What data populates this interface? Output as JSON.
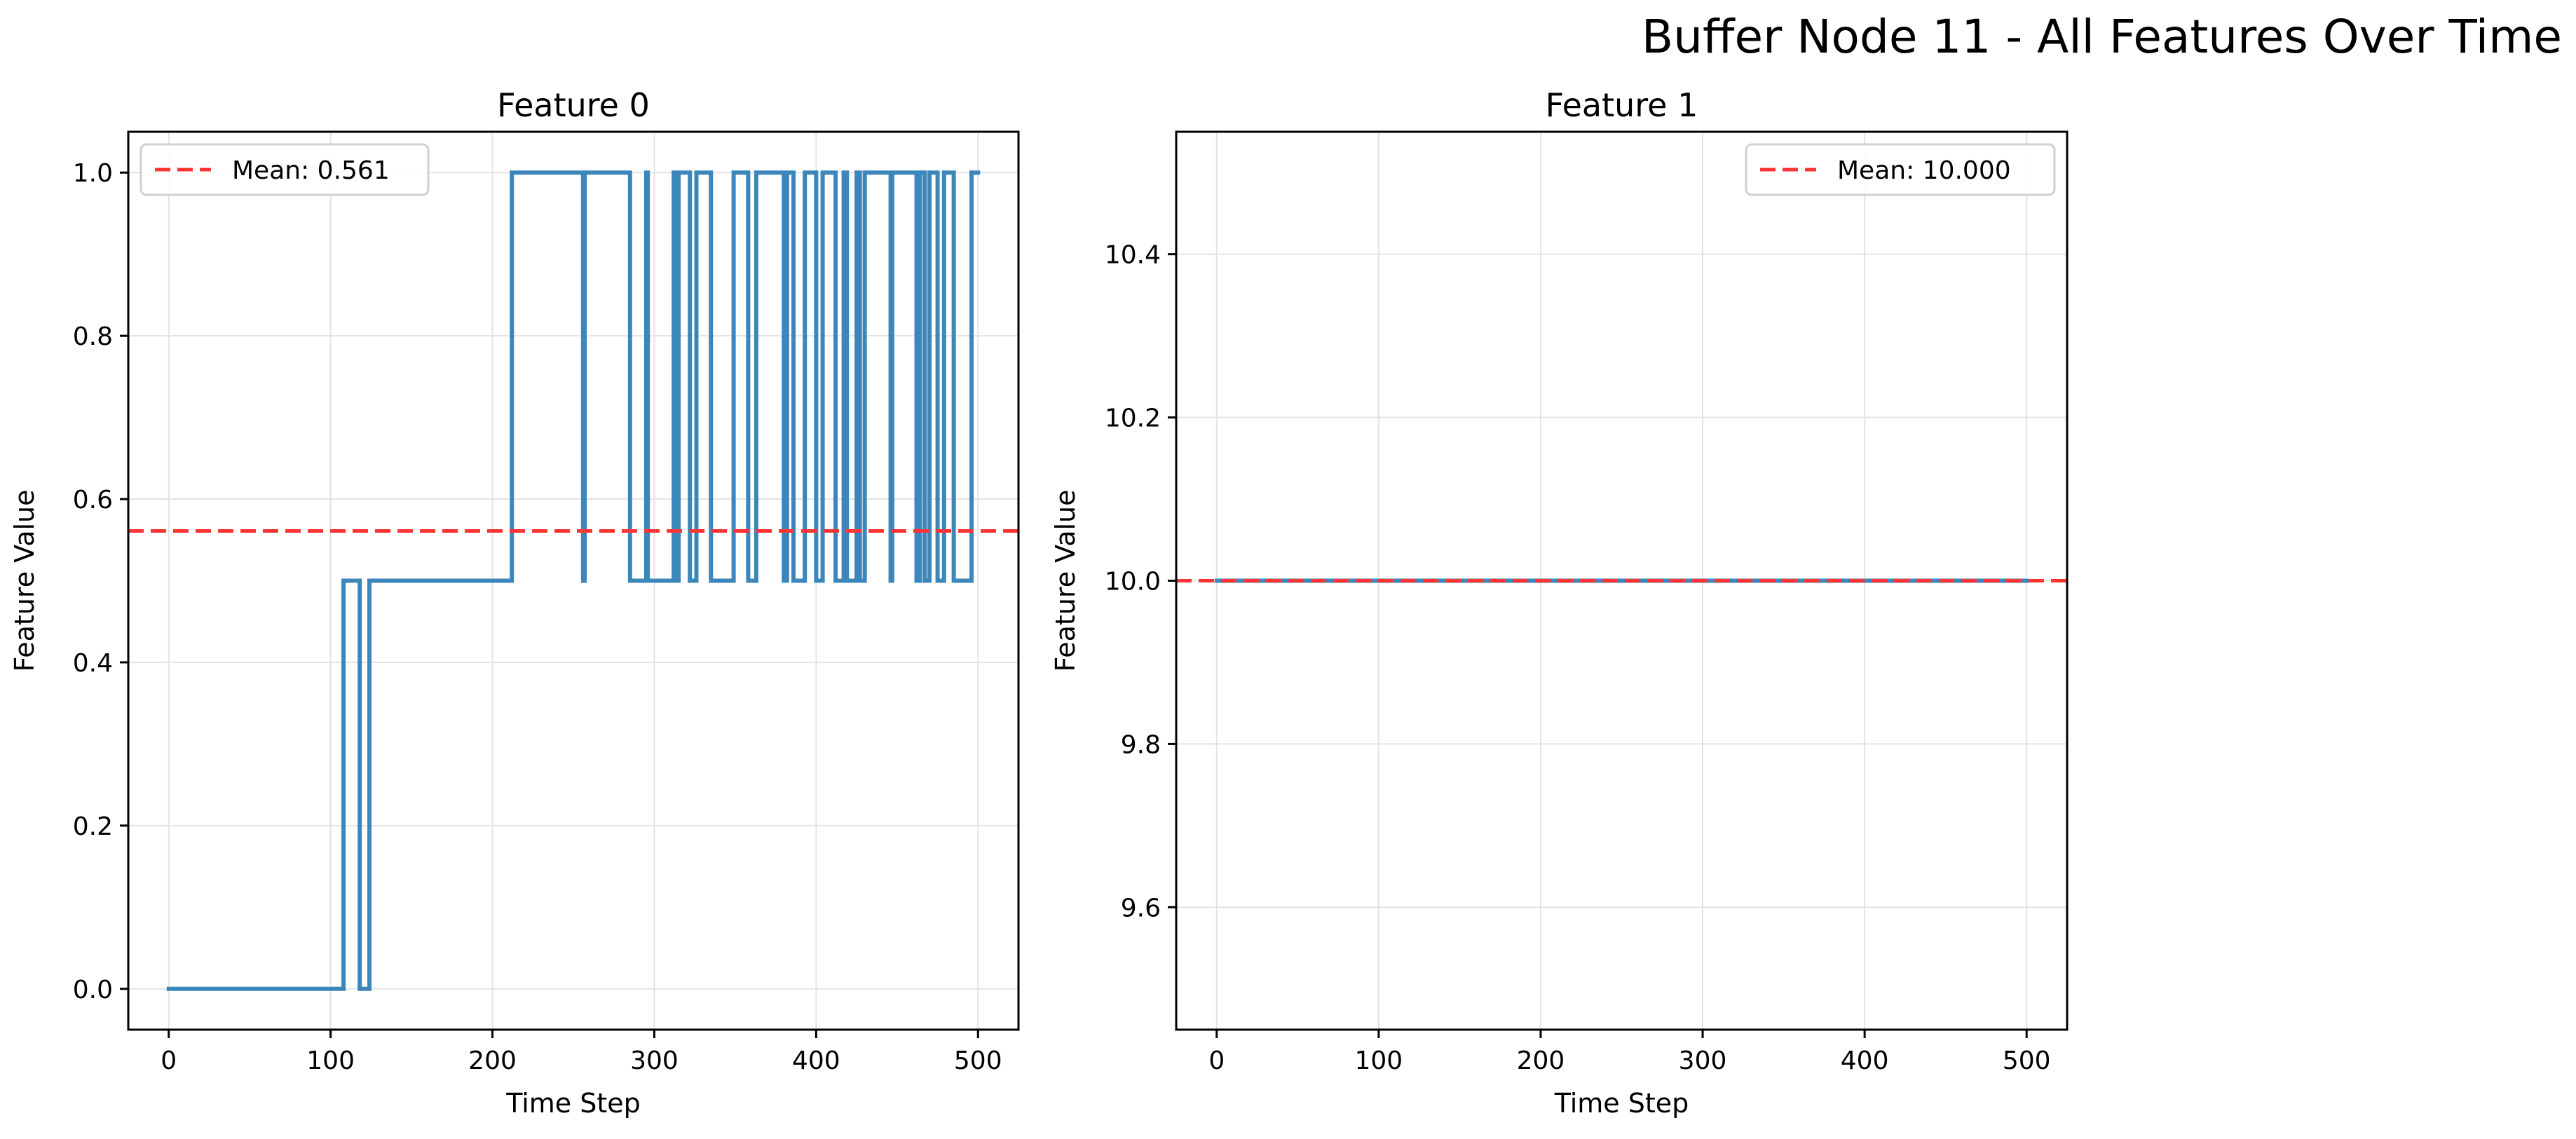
{
  "figure": {
    "suptitle": "Buffer Node 11 - All Features Over Time"
  },
  "colors": {
    "series": "#3b86bb",
    "mean": "#ff3333",
    "grid": "#e3e3e3"
  },
  "chart_data": [
    {
      "type": "line",
      "title": "Feature 0",
      "xlabel": "Time Step",
      "ylabel": "Feature Value",
      "xlim": [
        -25,
        525
      ],
      "ylim": [
        -0.05,
        1.05
      ],
      "xticks": [
        0,
        100,
        200,
        300,
        400,
        500
      ],
      "yticks": [
        0.0,
        0.2,
        0.4,
        0.6,
        0.8,
        1.0
      ],
      "ytick_labels": [
        "0.0",
        "0.2",
        "0.4",
        "0.6",
        "0.8",
        "1.0"
      ],
      "grid": true,
      "legend_position": "top-left",
      "mean": {
        "value": 0.561,
        "label": "Mean: 0.561"
      },
      "series": [
        {
          "step": "post",
          "x": [
            0,
            108,
            118,
            124,
            128,
            212,
            256,
            257,
            258,
            259,
            285,
            295,
            296,
            297,
            299,
            312,
            313,
            314,
            315,
            322,
            326,
            335,
            349,
            358,
            363,
            380,
            382,
            386,
            393,
            400,
            404,
            412,
            417,
            419,
            425,
            427,
            430,
            438,
            446,
            447,
            462,
            464,
            467,
            470,
            475,
            479,
            485,
            496,
            500
          ],
          "y": [
            0,
            0.5,
            0,
            0.5,
            0.5,
            1,
            0.5,
            1,
            1,
            1,
            0.5,
            1,
            0.5,
            0.5,
            0.5,
            1,
            0.5,
            0.5,
            1,
            0.5,
            1,
            0.5,
            1,
            0.5,
            1,
            0.5,
            1,
            0.5,
            1,
            0.5,
            1,
            0.5,
            1,
            0.5,
            1,
            0.5,
            1,
            1,
            0.5,
            1,
            0.5,
            1,
            0.5,
            1,
            0.5,
            1,
            0.5,
            1,
            1
          ]
        }
      ]
    },
    {
      "type": "line",
      "title": "Feature 1",
      "xlabel": "Time Step",
      "ylabel": "Feature Value",
      "xlim": [
        -25,
        525
      ],
      "ylim": [
        9.45,
        10.55
      ],
      "xticks": [
        0,
        100,
        200,
        300,
        400,
        500
      ],
      "yticks": [
        9.6,
        9.8,
        10.0,
        10.2,
        10.4
      ],
      "ytick_labels": [
        "9.6",
        "9.8",
        "10.0",
        "10.2",
        "10.4"
      ],
      "grid": true,
      "legend_position": "top-right",
      "mean": {
        "value": 10.0,
        "label": "Mean: 10.000"
      },
      "series": [
        {
          "step": "post",
          "x": [
            0,
            500
          ],
          "y": [
            10.0,
            10.0
          ]
        }
      ]
    }
  ]
}
